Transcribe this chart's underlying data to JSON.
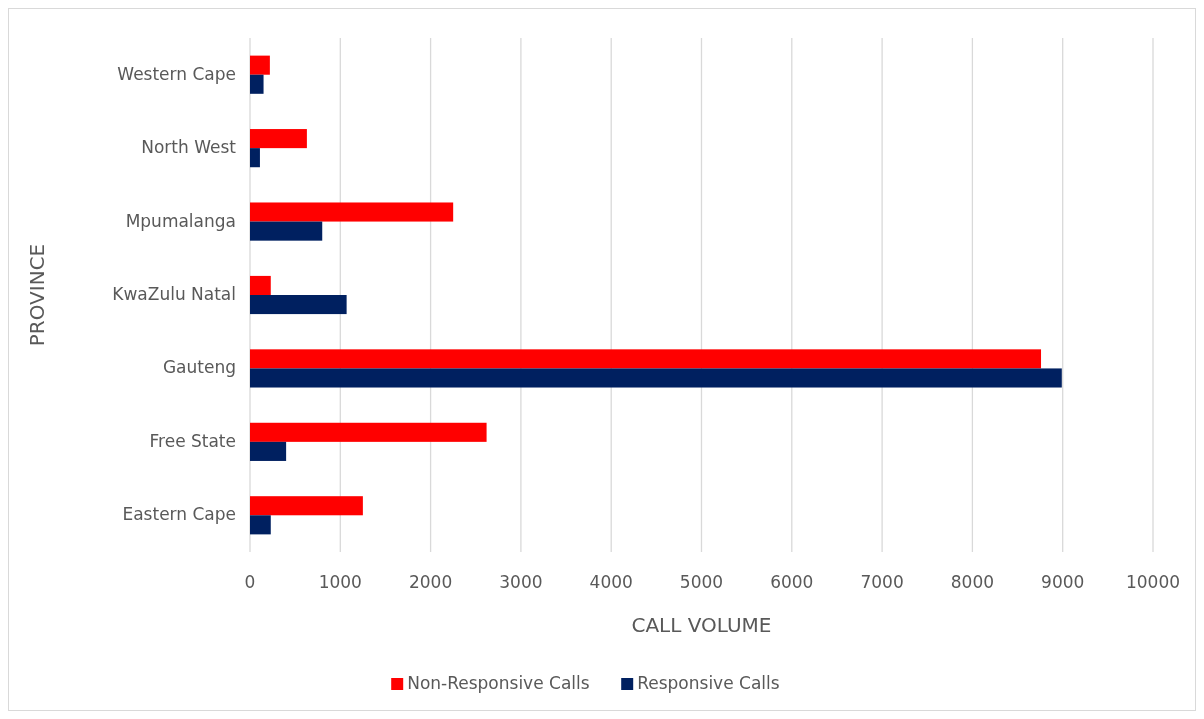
{
  "chart_data": {
    "type": "bar",
    "orientation": "horizontal",
    "xlabel": "CALL VOLUME",
    "ylabel": "PROVINCE",
    "categories": [
      "Western Cape",
      "North West",
      "Mpumalanga",
      "KwaZulu Natal",
      "Gauteng",
      "Free State",
      "Eastern Cape"
    ],
    "series": [
      {
        "name": "Non-Responsive Calls",
        "color": "#ff0000",
        "values": [
          220,
          630,
          2250,
          230,
          8760,
          2620,
          1250
        ]
      },
      {
        "name": "Responsive Calls",
        "color": "#002060",
        "values": [
          150,
          110,
          800,
          1070,
          8990,
          400,
          230
        ]
      }
    ],
    "xlim": [
      0,
      10000
    ],
    "xticks": [
      0,
      1000,
      2000,
      3000,
      4000,
      5000,
      6000,
      7000,
      8000,
      9000,
      10000
    ],
    "grid": "x",
    "legend": "bottom"
  }
}
